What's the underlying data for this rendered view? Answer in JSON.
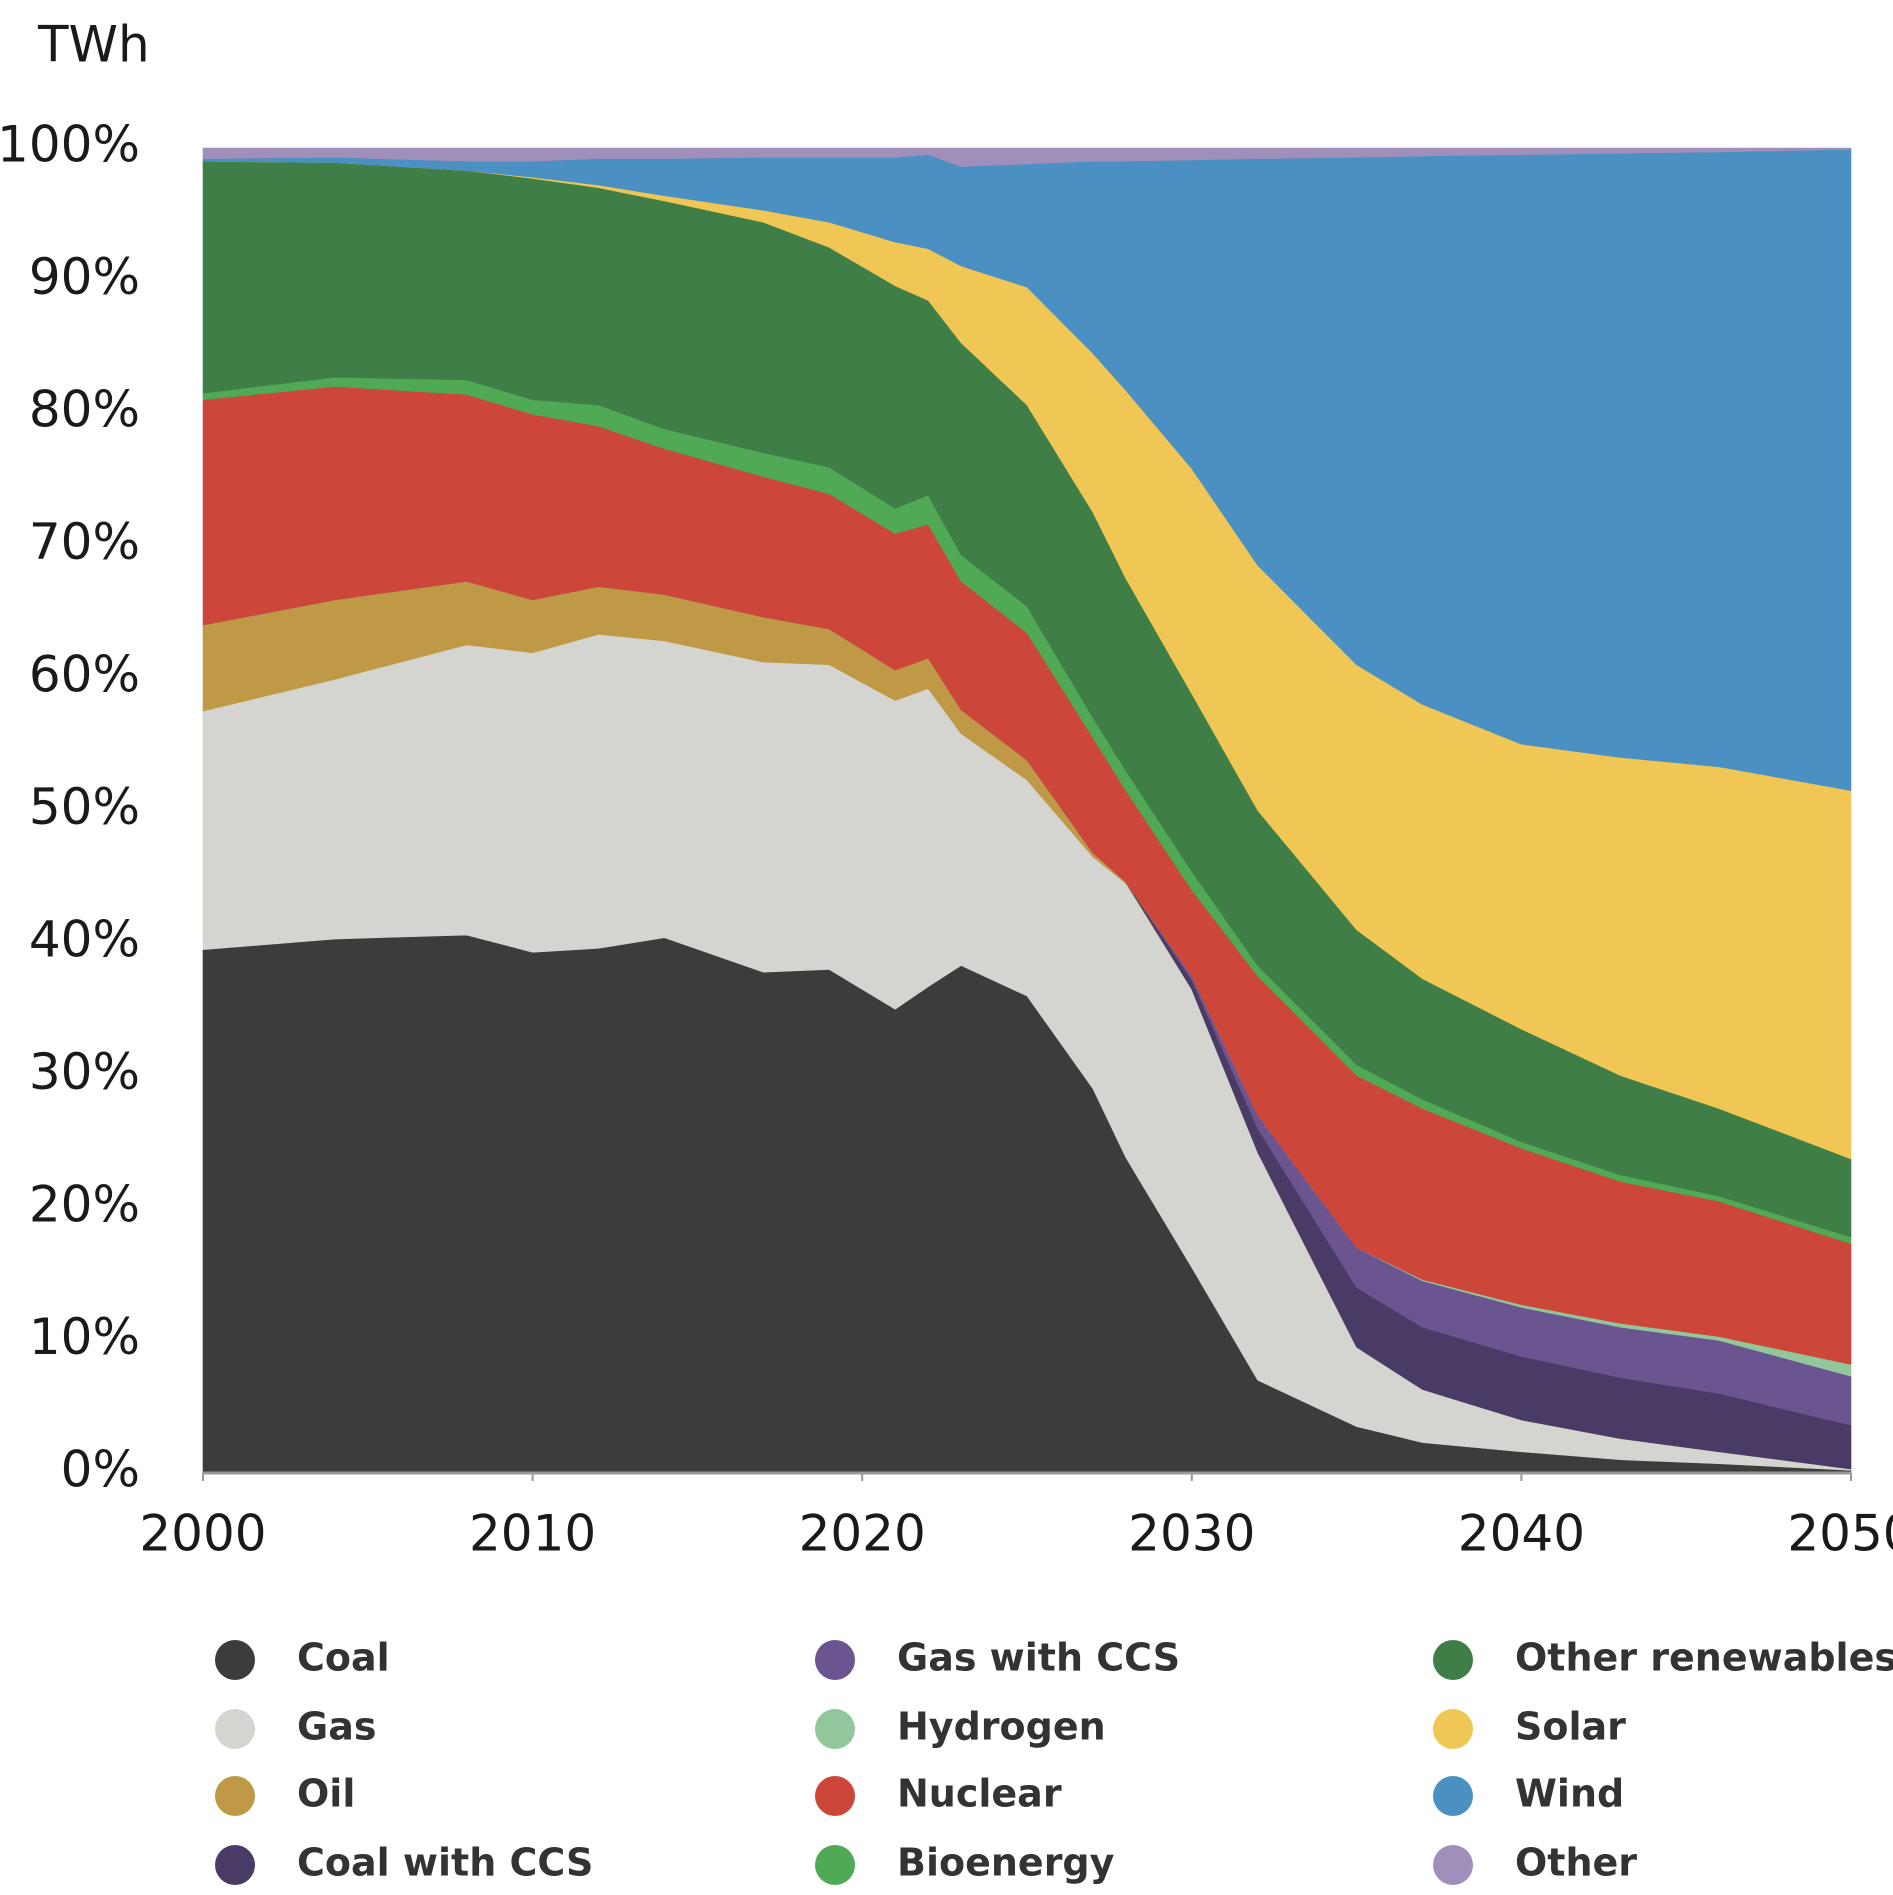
{
  "chart_data": {
    "type": "stacked_area",
    "y_label": "TWh",
    "x": [
      2000,
      2004,
      2008,
      2010,
      2012,
      2014,
      2017,
      2019,
      2021,
      2022,
      2023,
      2025,
      2027,
      2028,
      2030,
      2032,
      2035,
      2037,
      2040,
      2043,
      2046,
      2050
    ],
    "xlim": [
      2000,
      2050
    ],
    "xticks": [
      2000,
      2010,
      2020,
      2030,
      2040,
      2050
    ],
    "ylim": [
      0,
      100
    ],
    "yticks": [
      {
        "value": 0,
        "label": "0%"
      },
      {
        "value": 10,
        "label": "10%"
      },
      {
        "value": 20,
        "label": "20%"
      },
      {
        "value": 30,
        "label": "30%"
      },
      {
        "value": 40,
        "label": "40%"
      },
      {
        "value": 50,
        "label": "50%"
      },
      {
        "value": 60,
        "label": "60%"
      },
      {
        "value": 70,
        "label": "70%"
      },
      {
        "value": 80,
        "label": "80%"
      },
      {
        "value": 90,
        "label": "90%"
      },
      {
        "value": 100,
        "label": "100%"
      }
    ],
    "legend_position": "bottom",
    "series": [
      {
        "name": "Coal",
        "color": "#3c3c3b",
        "values": [
          39.5,
          40.3,
          40.6,
          39.3,
          39.6,
          40.4,
          37.8,
          38.0,
          35.0,
          36.7,
          38.3,
          36.0,
          29.0,
          23.8,
          15.5,
          7.0,
          3.5,
          2.3,
          1.6,
          1.0,
          0.7,
          0.2
        ]
      },
      {
        "name": "Gas",
        "color": "#d4d5d0",
        "values": [
          18,
          19.6,
          21.9,
          22.6,
          23.7,
          22.4,
          23.4,
          23.0,
          23.3,
          22.5,
          17.5,
          16.3,
          17.5,
          20.7,
          21.0,
          17.2,
          6.0,
          4.0,
          2.4,
          1.6,
          0.9,
          0.1
        ]
      },
      {
        "name": "Oil",
        "color": "#bf9946",
        "values": [
          6.5,
          6.0,
          4.8,
          4.0,
          3.6,
          3.5,
          3.4,
          2.7,
          2.3,
          2.3,
          1.8,
          1.5,
          0.3,
          0.1,
          0,
          0,
          0,
          0,
          0,
          0,
          0,
          0
        ]
      },
      {
        "name": "Coal with CCS",
        "color": "#4a3b66",
        "values": [
          0,
          0,
          0,
          0,
          0,
          0,
          0,
          0,
          0,
          0,
          0,
          0,
          0,
          0,
          0.7,
          1.8,
          4.5,
          4.7,
          4.8,
          4.6,
          4.4,
          3.3
        ]
      },
      {
        "name": "Gas with CCS",
        "color": "#6b5590",
        "values": [
          0,
          0,
          0,
          0,
          0,
          0,
          0,
          0,
          0,
          0,
          0,
          0,
          0,
          0,
          0.3,
          1.0,
          3.0,
          3.5,
          3.7,
          3.8,
          4.0,
          3.7
        ]
      },
      {
        "name": "Hydrogen",
        "color": "#92c79b",
        "values": [
          0,
          0,
          0,
          0,
          0,
          0,
          0,
          0,
          0,
          0,
          0,
          0,
          0,
          0,
          0,
          0,
          0,
          0.1,
          0.2,
          0.3,
          0.3,
          0.9
        ]
      },
      {
        "name": "Nuclear",
        "color": "#cc4639",
        "values": [
          17,
          16.1,
          14.1,
          14.0,
          12.1,
          11.0,
          10.6,
          10.2,
          10.3,
          10.1,
          9.7,
          9.6,
          8.7,
          6.9,
          6.5,
          10.5,
          13.0,
          12.9,
          11.8,
          10.7,
          10.2,
          9.1
        ]
      },
      {
        "name": "Bioenergy",
        "color": "#4fa955",
        "values": [
          0.5,
          0.7,
          1.1,
          1.1,
          1.6,
          1.5,
          1.8,
          2.0,
          1.9,
          2.2,
          2.0,
          2.0,
          1.5,
          1.5,
          1.4,
          0.8,
          0.8,
          0.7,
          0.5,
          0.5,
          0.4,
          0.5
        ]
      },
      {
        "name": "Other renewables",
        "color": "#3f7f47",
        "values": [
          17.5,
          16.2,
          15.8,
          16.7,
          16.4,
          17.2,
          17.4,
          16.6,
          16.8,
          14.7,
          16.0,
          15.2,
          15.5,
          14.5,
          13.4,
          11.7,
          10.2,
          9.1,
          8.5,
          7.5,
          6.6,
          5.9
        ]
      },
      {
        "name": "Solar",
        "color": "#f0c654",
        "values": [
          0,
          0,
          0,
          0.1,
          0.2,
          0.4,
          0.9,
          1.9,
          3.3,
          3.9,
          5.8,
          8.9,
          12.0,
          14.2,
          17.0,
          18.5,
          20.0,
          20.7,
          21.5,
          24.0,
          25.8,
          27.8
        ]
      },
      {
        "name": "Wind",
        "color": "#4a90c2",
        "values": [
          0.2,
          0.4,
          0.7,
          1.2,
          2.0,
          2.8,
          4.0,
          4.9,
          6.4,
          7.1,
          7.5,
          9.3,
          14.5,
          17.3,
          23.3,
          30.7,
          38.3,
          41.4,
          44.5,
          45.6,
          46.4,
          48.4
        ]
      },
      {
        "name": "Other",
        "color": "#a08fba",
        "values": [
          0.8,
          0.7,
          1.0,
          1.0,
          0.8,
          0.8,
          0.7,
          0.7,
          0.7,
          0.5,
          1.4,
          1.2,
          1.0,
          1.0,
          0.9,
          0.8,
          0.7,
          0.6,
          0.5,
          0.4,
          0.3,
          0.1
        ]
      }
    ]
  }
}
